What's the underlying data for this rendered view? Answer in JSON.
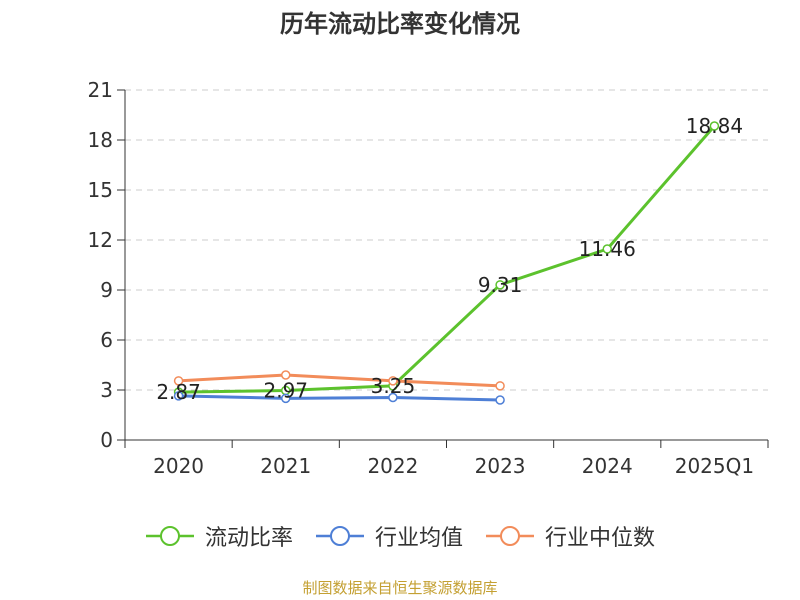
{
  "chart_data": {
    "type": "line",
    "title": "历年流动比率变化情况",
    "categories": [
      "2020",
      "2021",
      "2022",
      "2023",
      "2024",
      "2025Q1"
    ],
    "ylim": [
      0,
      21
    ],
    "yticks": [
      "0",
      "3",
      "6",
      "9",
      "12",
      "15",
      "18",
      "21"
    ],
    "grid": true,
    "legend_position": "bottom",
    "series": [
      {
        "name": "流动比率",
        "color": "#5cc22d",
        "values": [
          2.87,
          2.97,
          3.25,
          9.31,
          11.46,
          18.84
        ],
        "labels": [
          "2.87",
          "2.97",
          "3.25",
          "9.31",
          "11.46",
          "18.84"
        ]
      },
      {
        "name": "行业均值",
        "color": "#4e7fd6",
        "values": [
          2.65,
          2.5,
          2.55,
          2.4,
          null,
          null
        ]
      },
      {
        "name": "行业中位数",
        "color": "#f28c5a",
        "values": [
          3.55,
          3.9,
          3.55,
          3.25,
          null,
          null
        ]
      }
    ]
  },
  "source_note": "制图数据来自恒生聚源数据库"
}
